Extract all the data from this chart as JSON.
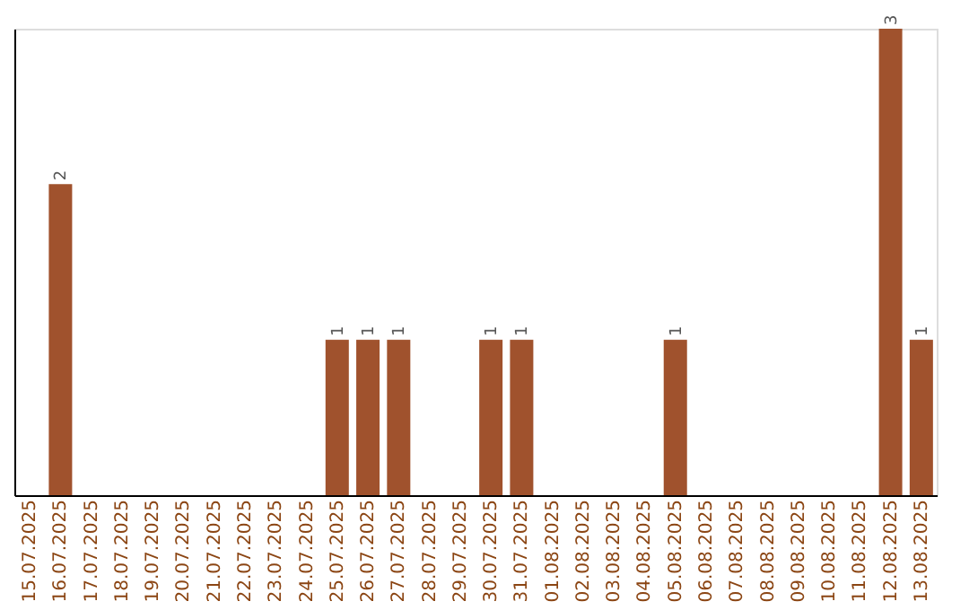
{
  "chart_data": {
    "type": "bar",
    "categories": [
      "15.07.2025",
      "16.07.2025",
      "17.07.2025",
      "18.07.2025",
      "19.07.2025",
      "20.07.2025",
      "21.07.2025",
      "22.07.2025",
      "23.07.2025",
      "24.07.2025",
      "25.07.2025",
      "26.07.2025",
      "27.07.2025",
      "28.07.2025",
      "29.07.2025",
      "30.07.2025",
      "31.07.2025",
      "01.08.2025",
      "02.08.2025",
      "03.08.2025",
      "04.08.2025",
      "05.08.2025",
      "06.08.2025",
      "07.08.2025",
      "08.08.2025",
      "09.08.2025",
      "10.08.2025",
      "11.08.2025",
      "12.08.2025",
      "13.08.2025"
    ],
    "values": [
      0,
      2,
      0,
      0,
      0,
      0,
      0,
      0,
      0,
      0,
      1,
      1,
      1,
      0,
      0,
      1,
      1,
      0,
      0,
      0,
      0,
      1,
      0,
      0,
      0,
      0,
      0,
      0,
      3,
      1
    ],
    "value_labels": [
      null,
      "2",
      null,
      null,
      null,
      null,
      null,
      null,
      null,
      null,
      "1",
      "1",
      "1",
      null,
      null,
      "1",
      "1",
      null,
      null,
      null,
      null,
      "1",
      null,
      null,
      null,
      null,
      null,
      null,
      "3",
      "1"
    ],
    "color": "#a0522d",
    "tick_labels": "x",
    "grid": false
  }
}
